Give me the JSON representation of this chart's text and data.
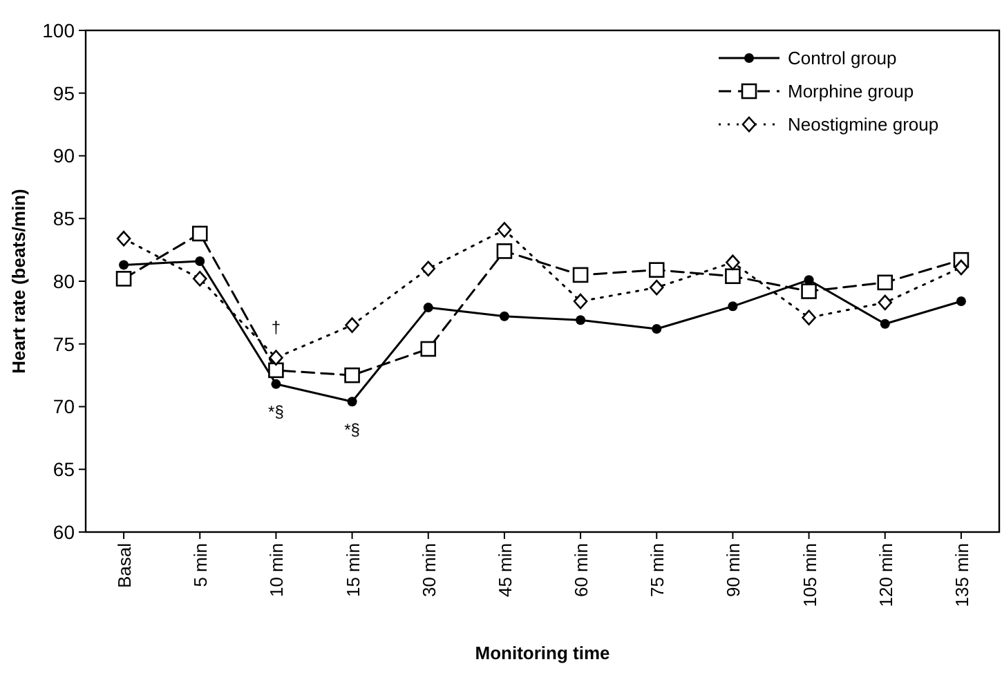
{
  "chart_data": {
    "type": "line",
    "xlabel": "Monitoring time",
    "ylabel": "Heart rate (beats/min)",
    "categories": [
      "Basal",
      "5 min",
      "10 min",
      "15 min",
      "30 min",
      "45 min",
      "60 min",
      "75 min",
      "90 min",
      "105 min",
      "120 min",
      "135 min"
    ],
    "series": [
      {
        "name": "Control group",
        "color": "#000000",
        "marker": "circle",
        "line_style": "solid",
        "values": [
          81.3,
          81.6,
          71.8,
          70.4,
          77.9,
          77.2,
          76.9,
          76.2,
          78,
          80.1,
          76.6,
          78.4
        ]
      },
      {
        "name": "Morphine group",
        "color": "#000000",
        "marker": "square",
        "line_style": "dashed",
        "values": [
          80.2,
          83.8,
          72.9,
          72.5,
          74.6,
          82.4,
          80.5,
          80.9,
          80.4,
          79.2,
          79.9,
          81.7
        ]
      },
      {
        "name": "Neostigmine group",
        "color": "#000000",
        "marker": "diamond",
        "line_style": "dotted",
        "values": [
          83.4,
          80.2,
          73.9,
          76.5,
          81,
          84.1,
          78.4,
          79.5,
          81.5,
          77.1,
          78.3,
          81.1
        ]
      }
    ],
    "ylim": [
      60,
      100
    ],
    "yticks": [
      60,
      65,
      70,
      75,
      80,
      85,
      90,
      95,
      100
    ],
    "grid": false,
    "legend": "top right",
    "annotations": [
      {
        "text": "†",
        "x": "10 min",
        "y": 73.9
      },
      {
        "text": "*§",
        "x": "10 min",
        "y": 71.8
      },
      {
        "text": "*§",
        "x": "15 min",
        "y": 70.4
      }
    ]
  }
}
